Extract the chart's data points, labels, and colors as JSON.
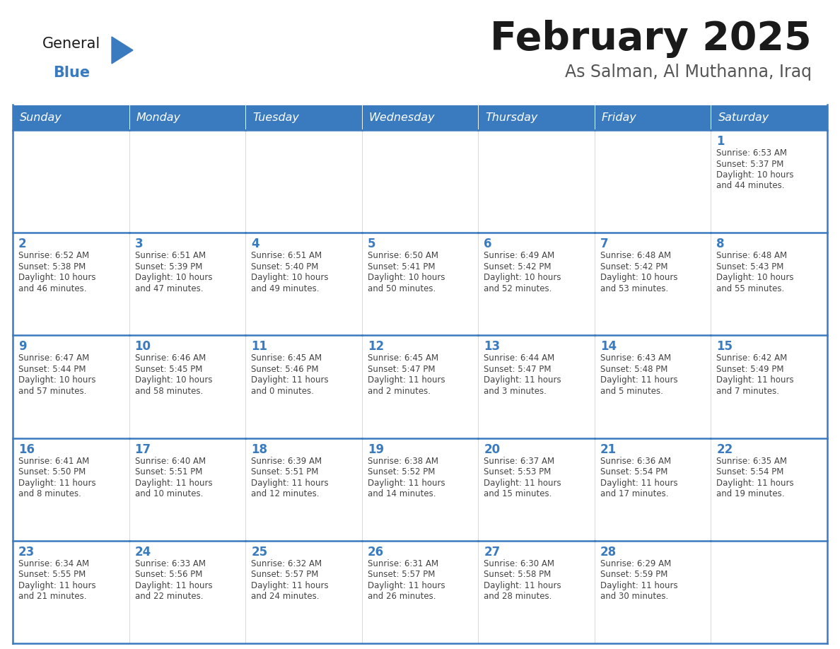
{
  "title": "February 2025",
  "subtitle": "As Salman, Al Muthanna, Iraq",
  "header_color": "#3a7bbf",
  "header_text_color": "#ffffff",
  "border_color": "#3a7bbf",
  "day_num_color": "#3a7bbf",
  "text_color": "#444444",
  "logo_general_color": "#1a1a1a",
  "logo_blue_color": "#3a7bbf",
  "days_of_week": [
    "Sunday",
    "Monday",
    "Tuesday",
    "Wednesday",
    "Thursday",
    "Friday",
    "Saturday"
  ],
  "calendar_data": [
    [
      null,
      null,
      null,
      null,
      null,
      null,
      {
        "day": 1,
        "sunrise": "6:53 AM",
        "sunset": "5:37 PM",
        "daylight_hours": 10,
        "daylight_minutes": 44
      }
    ],
    [
      {
        "day": 2,
        "sunrise": "6:52 AM",
        "sunset": "5:38 PM",
        "daylight_hours": 10,
        "daylight_minutes": 46
      },
      {
        "day": 3,
        "sunrise": "6:51 AM",
        "sunset": "5:39 PM",
        "daylight_hours": 10,
        "daylight_minutes": 47
      },
      {
        "day": 4,
        "sunrise": "6:51 AM",
        "sunset": "5:40 PM",
        "daylight_hours": 10,
        "daylight_minutes": 49
      },
      {
        "day": 5,
        "sunrise": "6:50 AM",
        "sunset": "5:41 PM",
        "daylight_hours": 10,
        "daylight_minutes": 50
      },
      {
        "day": 6,
        "sunrise": "6:49 AM",
        "sunset": "5:42 PM",
        "daylight_hours": 10,
        "daylight_minutes": 52
      },
      {
        "day": 7,
        "sunrise": "6:48 AM",
        "sunset": "5:42 PM",
        "daylight_hours": 10,
        "daylight_minutes": 53
      },
      {
        "day": 8,
        "sunrise": "6:48 AM",
        "sunset": "5:43 PM",
        "daylight_hours": 10,
        "daylight_minutes": 55
      }
    ],
    [
      {
        "day": 9,
        "sunrise": "6:47 AM",
        "sunset": "5:44 PM",
        "daylight_hours": 10,
        "daylight_minutes": 57
      },
      {
        "day": 10,
        "sunrise": "6:46 AM",
        "sunset": "5:45 PM",
        "daylight_hours": 10,
        "daylight_minutes": 58
      },
      {
        "day": 11,
        "sunrise": "6:45 AM",
        "sunset": "5:46 PM",
        "daylight_hours": 11,
        "daylight_minutes": 0
      },
      {
        "day": 12,
        "sunrise": "6:45 AM",
        "sunset": "5:47 PM",
        "daylight_hours": 11,
        "daylight_minutes": 2
      },
      {
        "day": 13,
        "sunrise": "6:44 AM",
        "sunset": "5:47 PM",
        "daylight_hours": 11,
        "daylight_minutes": 3
      },
      {
        "day": 14,
        "sunrise": "6:43 AM",
        "sunset": "5:48 PM",
        "daylight_hours": 11,
        "daylight_minutes": 5
      },
      {
        "day": 15,
        "sunrise": "6:42 AM",
        "sunset": "5:49 PM",
        "daylight_hours": 11,
        "daylight_minutes": 7
      }
    ],
    [
      {
        "day": 16,
        "sunrise": "6:41 AM",
        "sunset": "5:50 PM",
        "daylight_hours": 11,
        "daylight_minutes": 8
      },
      {
        "day": 17,
        "sunrise": "6:40 AM",
        "sunset": "5:51 PM",
        "daylight_hours": 11,
        "daylight_minutes": 10
      },
      {
        "day": 18,
        "sunrise": "6:39 AM",
        "sunset": "5:51 PM",
        "daylight_hours": 11,
        "daylight_minutes": 12
      },
      {
        "day": 19,
        "sunrise": "6:38 AM",
        "sunset": "5:52 PM",
        "daylight_hours": 11,
        "daylight_minutes": 14
      },
      {
        "day": 20,
        "sunrise": "6:37 AM",
        "sunset": "5:53 PM",
        "daylight_hours": 11,
        "daylight_minutes": 15
      },
      {
        "day": 21,
        "sunrise": "6:36 AM",
        "sunset": "5:54 PM",
        "daylight_hours": 11,
        "daylight_minutes": 17
      },
      {
        "day": 22,
        "sunrise": "6:35 AM",
        "sunset": "5:54 PM",
        "daylight_hours": 11,
        "daylight_minutes": 19
      }
    ],
    [
      {
        "day": 23,
        "sunrise": "6:34 AM",
        "sunset": "5:55 PM",
        "daylight_hours": 11,
        "daylight_minutes": 21
      },
      {
        "day": 24,
        "sunrise": "6:33 AM",
        "sunset": "5:56 PM",
        "daylight_hours": 11,
        "daylight_minutes": 22
      },
      {
        "day": 25,
        "sunrise": "6:32 AM",
        "sunset": "5:57 PM",
        "daylight_hours": 11,
        "daylight_minutes": 24
      },
      {
        "day": 26,
        "sunrise": "6:31 AM",
        "sunset": "5:57 PM",
        "daylight_hours": 11,
        "daylight_minutes": 26
      },
      {
        "day": 27,
        "sunrise": "6:30 AM",
        "sunset": "5:58 PM",
        "daylight_hours": 11,
        "daylight_minutes": 28
      },
      {
        "day": 28,
        "sunrise": "6:29 AM",
        "sunset": "5:59 PM",
        "daylight_hours": 11,
        "daylight_minutes": 30
      },
      null
    ]
  ]
}
